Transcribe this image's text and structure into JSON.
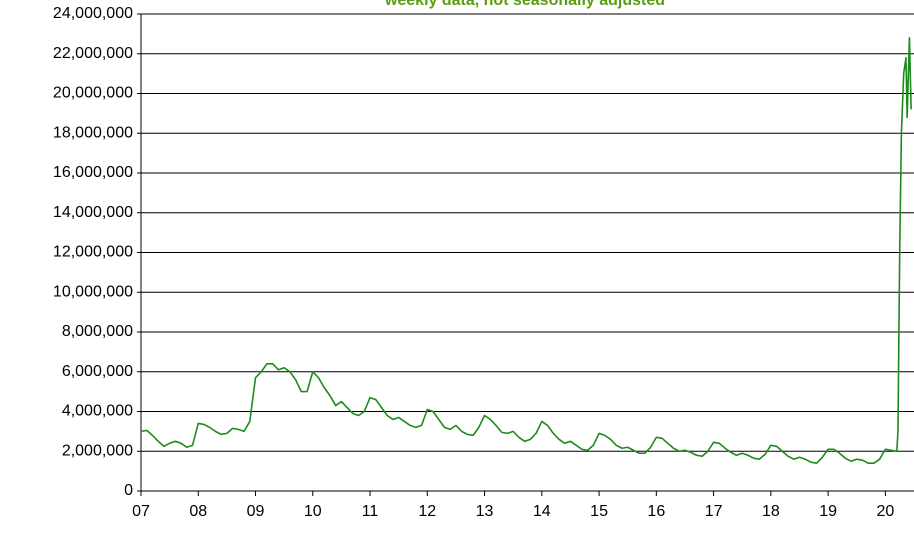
{
  "chart_data": {
    "type": "line",
    "subtitle": "weekly data, not seasonally adjusted",
    "color": "#1e8a1e",
    "grid": true,
    "xlim": [
      2007,
      2020.5
    ],
    "xticks": [
      {
        "value": 2007,
        "label": "07"
      },
      {
        "value": 2008,
        "label": "08"
      },
      {
        "value": 2009,
        "label": "09"
      },
      {
        "value": 2010,
        "label": "10"
      },
      {
        "value": 2011,
        "label": "11"
      },
      {
        "value": 2012,
        "label": "12"
      },
      {
        "value": 2013,
        "label": "13"
      },
      {
        "value": 2014,
        "label": "14"
      },
      {
        "value": 2015,
        "label": "15"
      },
      {
        "value": 2016,
        "label": "16"
      },
      {
        "value": 2017,
        "label": "17"
      },
      {
        "value": 2018,
        "label": "18"
      },
      {
        "value": 2019,
        "label": "19"
      },
      {
        "value": 2020,
        "label": "20"
      }
    ],
    "ylim": [
      0,
      24000000
    ],
    "yticks": [
      0,
      {
        "value": 2000000,
        "label": "2,000,000"
      },
      {
        "value": 4000000,
        "label": "4,000,000"
      },
      {
        "value": 6000000,
        "label": "6,000,000"
      },
      {
        "value": 8000000,
        "label": "8,000,000"
      },
      {
        "value": 10000000,
        "label": "10,000,000"
      },
      {
        "value": 12000000,
        "label": "12,000,000"
      },
      {
        "value": 14000000,
        "label": "14,000,000"
      },
      {
        "value": 16000000,
        "label": "16,000,000"
      },
      {
        "value": 18000000,
        "label": "18,000,000"
      },
      {
        "value": 20000000,
        "label": "20,000,000"
      },
      {
        "value": 22000000,
        "label": "22,000,000"
      },
      {
        "value": 24000000,
        "label": "24,000,000"
      }
    ],
    "x": [
      2007.0,
      2007.1,
      2007.2,
      2007.3,
      2007.4,
      2007.5,
      2007.6,
      2007.7,
      2007.8,
      2007.9,
      2008.0,
      2008.1,
      2008.2,
      2008.3,
      2008.4,
      2008.5,
      2008.6,
      2008.7,
      2008.8,
      2008.9,
      2009.0,
      2009.1,
      2009.2,
      2009.3,
      2009.4,
      2009.5,
      2009.6,
      2009.7,
      2009.8,
      2009.9,
      2010.0,
      2010.1,
      2010.2,
      2010.3,
      2010.4,
      2010.5,
      2010.6,
      2010.7,
      2010.8,
      2010.9,
      2011.0,
      2011.1,
      2011.2,
      2011.3,
      2011.4,
      2011.5,
      2011.6,
      2011.7,
      2011.8,
      2011.9,
      2012.0,
      2012.1,
      2012.2,
      2012.3,
      2012.4,
      2012.5,
      2012.6,
      2012.7,
      2012.8,
      2012.9,
      2013.0,
      2013.1,
      2013.2,
      2013.3,
      2013.4,
      2013.5,
      2013.6,
      2013.7,
      2013.8,
      2013.9,
      2014.0,
      2014.1,
      2014.2,
      2014.3,
      2014.4,
      2014.5,
      2014.6,
      2014.7,
      2014.8,
      2014.9,
      2015.0,
      2015.1,
      2015.2,
      2015.3,
      2015.4,
      2015.5,
      2015.6,
      2015.7,
      2015.8,
      2015.9,
      2016.0,
      2016.1,
      2016.2,
      2016.3,
      2016.4,
      2016.5,
      2016.6,
      2016.7,
      2016.8,
      2016.9,
      2017.0,
      2017.1,
      2017.2,
      2017.3,
      2017.4,
      2017.5,
      2017.6,
      2017.7,
      2017.8,
      2017.9,
      2018.0,
      2018.1,
      2018.2,
      2018.3,
      2018.4,
      2018.5,
      2018.6,
      2018.7,
      2018.8,
      2018.9,
      2019.0,
      2019.1,
      2019.2,
      2019.3,
      2019.4,
      2019.5,
      2019.6,
      2019.7,
      2019.8,
      2019.9,
      2020.0,
      2020.1,
      2020.2,
      2020.22,
      2020.25,
      2020.28,
      2020.32,
      2020.36,
      2020.38,
      2020.42,
      2020.45
    ],
    "values": [
      3000000,
      3050000,
      2800000,
      2500000,
      2250000,
      2400000,
      2500000,
      2400000,
      2200000,
      2300000,
      3400000,
      3350000,
      3200000,
      3000000,
      2850000,
      2900000,
      3150000,
      3100000,
      3000000,
      3500000,
      5700000,
      6000000,
      6400000,
      6400000,
      6100000,
      6200000,
      6000000,
      5600000,
      5000000,
      5000000,
      6000000,
      5700000,
      5200000,
      4800000,
      4300000,
      4500000,
      4200000,
      3900000,
      3800000,
      4000000,
      4700000,
      4600000,
      4200000,
      3800000,
      3600000,
      3700000,
      3500000,
      3300000,
      3200000,
      3300000,
      4100000,
      4000000,
      3600000,
      3200000,
      3100000,
      3300000,
      3000000,
      2850000,
      2800000,
      3200000,
      3800000,
      3600000,
      3300000,
      2950000,
      2900000,
      3000000,
      2700000,
      2500000,
      2600000,
      2900000,
      3500000,
      3300000,
      2900000,
      2600000,
      2400000,
      2500000,
      2300000,
      2100000,
      2050000,
      2300000,
      2900000,
      2800000,
      2600000,
      2300000,
      2150000,
      2200000,
      2050000,
      1900000,
      1900000,
      2200000,
      2700000,
      2650000,
      2400000,
      2150000,
      2000000,
      2050000,
      1950000,
      1800000,
      1750000,
      2000000,
      2450000,
      2400000,
      2150000,
      1950000,
      1800000,
      1900000,
      1800000,
      1650000,
      1600000,
      1850000,
      2300000,
      2250000,
      2000000,
      1750000,
      1600000,
      1700000,
      1600000,
      1450000,
      1400000,
      1700000,
      2100000,
      2100000,
      1900000,
      1650000,
      1500000,
      1600000,
      1550000,
      1400000,
      1400000,
      1600000,
      2100000,
      2050000,
      2000000,
      3000000,
      12000000,
      18000000,
      21000000,
      21800000,
      18800000,
      22800000,
      19200000
    ]
  }
}
